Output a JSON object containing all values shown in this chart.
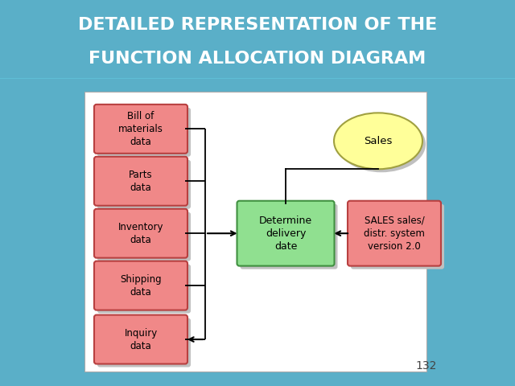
{
  "title_line1": "DETAILED REPRESENTATION OF THE",
  "title_line2": "FUNCTION ALLOCATION DIAGRAM",
  "title_bg_color": "#2980a8",
  "title_text_color": "#ffffff",
  "page_number": "132",
  "diagram_bg": "#ffffff",
  "outer_bg": "#5aafc8",
  "left_boxes": [
    {
      "label": "Bill of\nmaterials\ndata"
    },
    {
      "label": "Parts\ndata"
    },
    {
      "label": "Inventory\ndata"
    },
    {
      "label": "Shipping\ndata"
    },
    {
      "label": "Inquiry\ndata"
    }
  ],
  "left_box_facecolor": "#f08888",
  "left_box_edgecolor": "#b84040",
  "center_box_label": "Determine\ndelivery\ndate",
  "center_box_facecolor": "#90e090",
  "center_box_edgecolor": "#409040",
  "right_box_label": "SALES sales/\ndistr. system\nversion 2.0",
  "right_box_facecolor": "#f08888",
  "right_box_edgecolor": "#b84040",
  "ellipse_label": "Sales",
  "ellipse_facecolor": "#ffff99",
  "ellipse_edgecolor": "#a0a040",
  "arrow_color": "#000000",
  "shadow_color": "#c0c0c0"
}
